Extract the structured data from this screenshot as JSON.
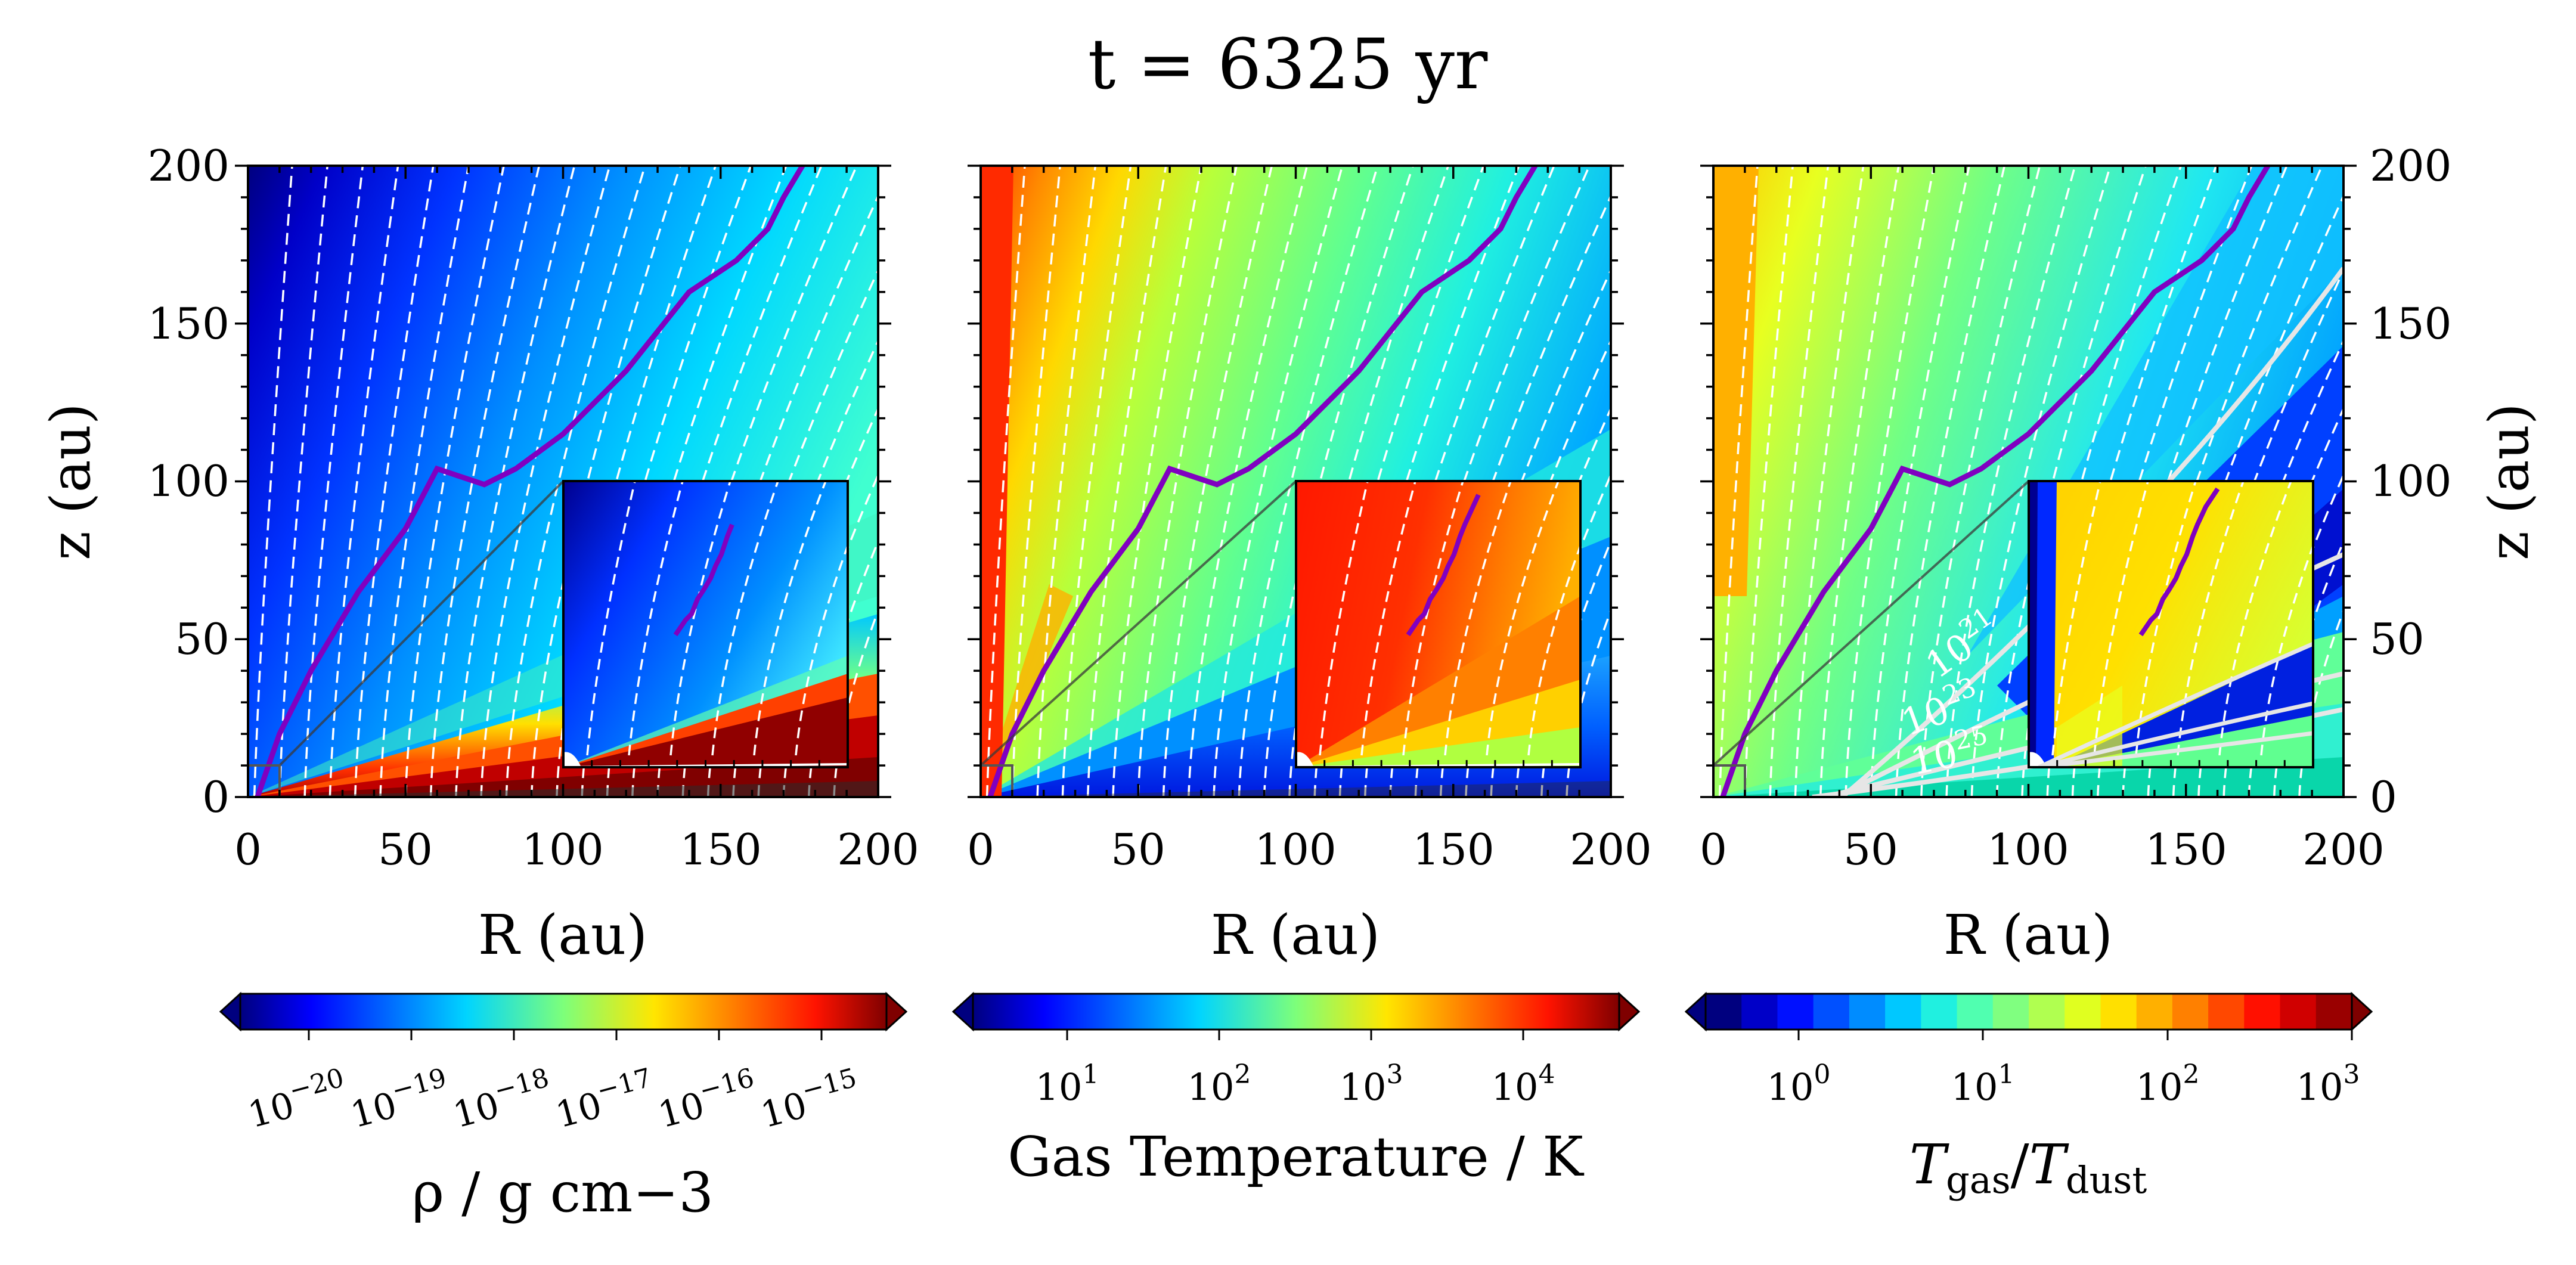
{
  "figure_title": "t = 6325 yr",
  "panels": [
    {
      "id": "density",
      "xlabel": "R (au)",
      "ylabel": "z (au)",
      "xticks": [
        "0",
        "50",
        "100",
        "150",
        "200"
      ],
      "yticks": [
        "0",
        "50",
        "100",
        "150",
        "200"
      ],
      "colorbar": {
        "label": "ρ / g cm−3",
        "scale": "log",
        "ticks": [
          {
            "base": "10",
            "exp": "−20"
          },
          {
            "base": "10",
            "exp": "−19"
          },
          {
            "base": "10",
            "exp": "−18"
          },
          {
            "base": "10",
            "exp": "−17"
          },
          {
            "base": "10",
            "exp": "−16"
          },
          {
            "base": "10",
            "exp": "−15"
          }
        ],
        "extend": "both"
      }
    },
    {
      "id": "gas-temperature",
      "xlabel": "R (au)",
      "xticks": [
        "0",
        "50",
        "100",
        "150",
        "200"
      ],
      "colorbar": {
        "label": "Gas Temperature / K",
        "scale": "log",
        "ticks": [
          {
            "base": "10",
            "exp": "1"
          },
          {
            "base": "10",
            "exp": "2"
          },
          {
            "base": "10",
            "exp": "3"
          },
          {
            "base": "10",
            "exp": "4"
          }
        ],
        "extend": "both"
      }
    },
    {
      "id": "temperature-ratio",
      "xlabel": "R (au)",
      "ylabel": "z (au)",
      "xticks": [
        "0",
        "50",
        "100",
        "150",
        "200"
      ],
      "yticks": [
        "0",
        "50",
        "100",
        "150",
        "200"
      ],
      "contour_labels": [
        {
          "base": "10",
          "exp": "21"
        },
        {
          "base": "10",
          "exp": "23"
        },
        {
          "base": "10",
          "exp": "25"
        }
      ],
      "colorbar": {
        "label_main": "T",
        "label_sub1": "gas",
        "label_sep": "/",
        "label_main2": "T",
        "label_sub2": "dust",
        "scale": "log",
        "ticks": [
          {
            "base": "10",
            "exp": "0"
          },
          {
            "base": "10",
            "exp": "1"
          },
          {
            "base": "10",
            "exp": "2"
          },
          {
            "base": "10",
            "exp": "3"
          }
        ],
        "extend": "both"
      }
    }
  ],
  "chart_data": {
    "type": "heatmap",
    "title": "t = 6325 yr",
    "xlim": [
      0,
      200
    ],
    "ylim": [
      0,
      200
    ],
    "xlabel": "R (au)",
    "ylabel": "z (au)",
    "inset": {
      "xlim": [
        0,
        10
      ],
      "ylim": [
        0,
        10
      ]
    },
    "purple_boundary": [
      [
        3,
        0
      ],
      [
        10,
        20
      ],
      [
        20,
        40
      ],
      [
        35,
        65
      ],
      [
        50,
        85
      ],
      [
        60,
        104
      ],
      [
        75,
        99
      ],
      [
        85,
        104
      ],
      [
        100,
        115
      ],
      [
        120,
        135
      ],
      [
        140,
        160
      ],
      [
        155,
        170
      ],
      [
        165,
        180
      ],
      [
        170,
        190
      ],
      [
        176,
        200
      ]
    ],
    "colorbar_ranges": {
      "density_g_cm3": [
        1e-21,
        1e-15
      ],
      "gas_temperature_K": [
        3,
        30000
      ],
      "tgas_over_tdust": [
        0.3,
        1000
      ]
    }
  }
}
